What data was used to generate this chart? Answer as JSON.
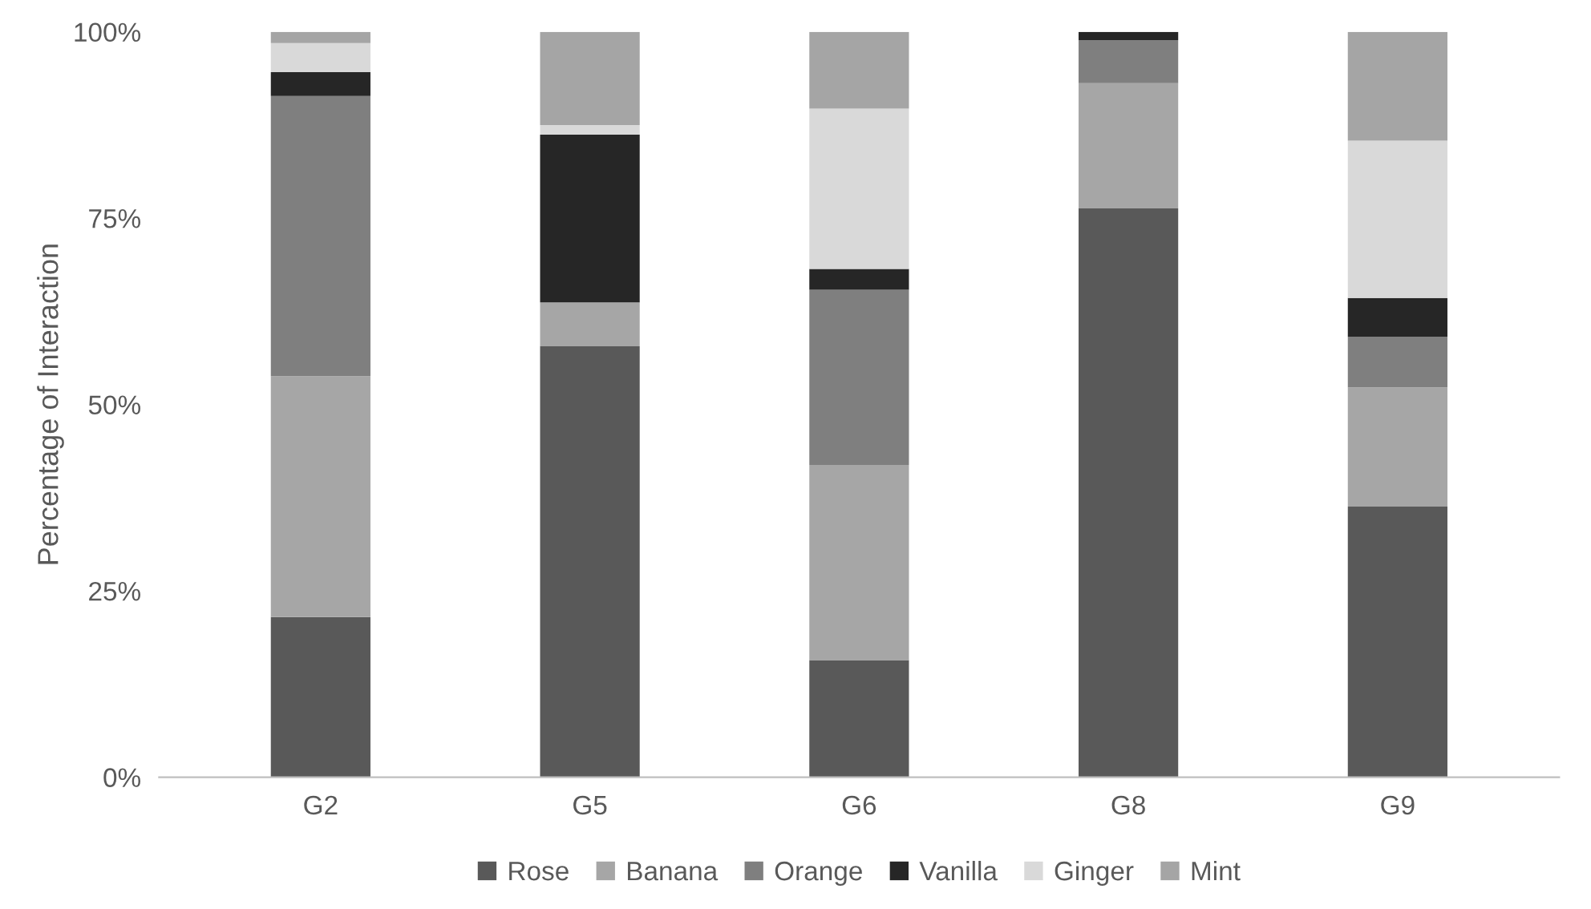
{
  "chart_data": {
    "type": "bar",
    "stacked": true,
    "ylabel": "Percentage of Interaction",
    "categories": [
      "G2",
      "G5",
      "G6",
      "G8",
      "G9"
    ],
    "series": [
      {
        "name": "Rose",
        "color": "#595959",
        "values": [
          21.5,
          57.8,
          15.7,
          76.3,
          36.3
        ]
      },
      {
        "name": "Banana",
        "color": "#a6a6a6",
        "values": [
          32.3,
          5.9,
          26.2,
          16.8,
          16.0
        ]
      },
      {
        "name": "Orange",
        "color": "#7f7f7f",
        "values": [
          37.6,
          0,
          23.5,
          5.8,
          6.8
        ]
      },
      {
        "name": "Vanilla",
        "color": "#262626",
        "values": [
          3.2,
          22.5,
          2.8,
          1.1,
          5.2
        ]
      },
      {
        "name": "Ginger",
        "color": "#d9d9d9",
        "values": [
          3.9,
          1.3,
          21.5,
          0,
          21.1
        ]
      },
      {
        "name": "Mint",
        "color": "#a5a5a5",
        "values": [
          1.5,
          12.5,
          10.3,
          0,
          14.6
        ]
      }
    ],
    "ylim": [
      0,
      100
    ],
    "yticks": [
      {
        "value": 0,
        "label": "0%"
      },
      {
        "value": 25,
        "label": "25%"
      },
      {
        "value": 50,
        "label": "50%"
      },
      {
        "value": 75,
        "label": "75%"
      },
      {
        "value": 100,
        "label": "100%"
      }
    ],
    "grid": false,
    "legend": "bottom"
  }
}
